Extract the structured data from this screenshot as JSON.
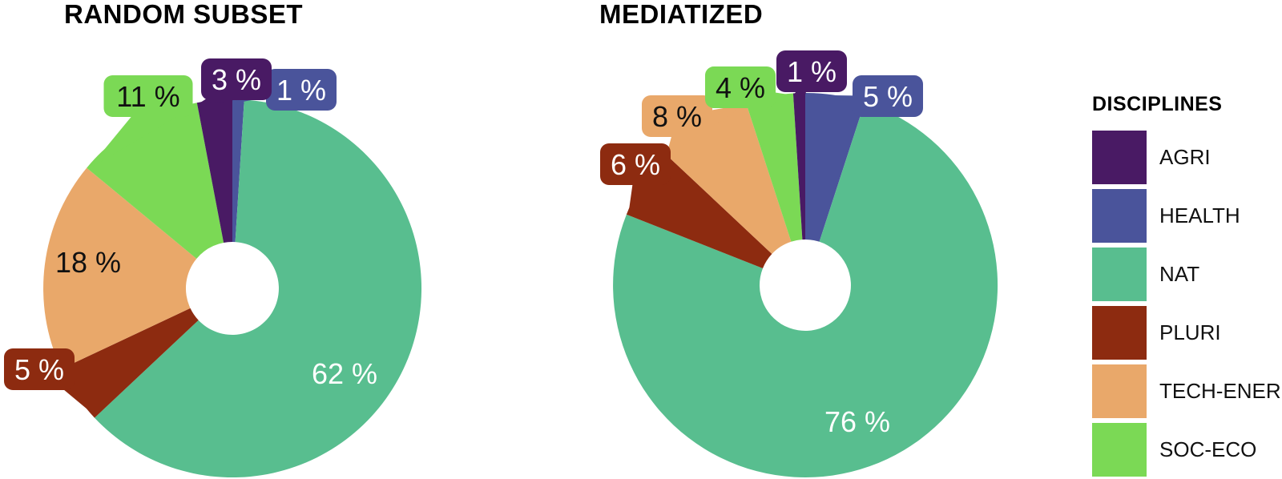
{
  "figure": {
    "background": "#ffffff"
  },
  "disciplines": [
    {
      "label": "AGRI",
      "color": "#491a64",
      "text_color": "#ffffff"
    },
    {
      "label": "HEALTH",
      "color": "#4a549b",
      "text_color": "#ffffff"
    },
    {
      "label": "NAT",
      "color": "#58be8f",
      "text_color": "#ffffff"
    },
    {
      "label": "PLURI",
      "color": "#8d2b10",
      "text_color": "#ffffff"
    },
    {
      "label": "TECH-ENER",
      "color": "#e9a86a",
      "text_color": "#111111"
    },
    {
      "label": "SOC-ECO",
      "color": "#7bd955",
      "text_color": "#111111"
    }
  ],
  "legend": {
    "title": "DISCIPLINES"
  },
  "chart_data": [
    {
      "type": "pie",
      "donut": true,
      "title": "RANDOM SUBSET",
      "unit": "%",
      "start_angle": "12-oclock",
      "direction": "clockwise",
      "slices": [
        {
          "discipline": "HEALTH",
          "value": 1,
          "display": "1 %",
          "label_style": "callout",
          "label_offset": [
            86,
            -248
          ]
        },
        {
          "discipline": "NAT",
          "value": 62,
          "display": "62 %",
          "label_style": "inside",
          "label_offset": [
            140,
            106
          ]
        },
        {
          "discipline": "PLURI",
          "value": 5,
          "display": "5 %",
          "label_style": "callout",
          "label_offset": [
            -241,
            101
          ]
        },
        {
          "discipline": "TECH-ENER",
          "value": 18,
          "display": "18 %",
          "label_style": "inside",
          "label_offset": [
            -180,
            -33
          ]
        },
        {
          "discipline": "SOC-ECO",
          "value": 11,
          "display": "11 %",
          "label_style": "callout",
          "label_offset": [
            -105,
            -240
          ]
        },
        {
          "discipline": "AGRI",
          "value": 3,
          "display": "3 %",
          "label_style": "callout",
          "label_offset": [
            5,
            -261
          ]
        }
      ]
    },
    {
      "type": "pie",
      "donut": true,
      "title": "MEDIATIZED",
      "unit": "%",
      "start_angle": "12-oclock",
      "direction": "clockwise",
      "slices": [
        {
          "discipline": "HEALTH",
          "value": 5,
          "display": "5 %",
          "label_style": "callout",
          "label_offset": [
            103,
            -236
          ]
        },
        {
          "discipline": "NAT",
          "value": 76,
          "display": "76 %",
          "label_style": "inside",
          "label_offset": [
            65,
            170
          ]
        },
        {
          "discipline": "PLURI",
          "value": 6,
          "display": "6 %",
          "label_style": "callout",
          "label_offset": [
            -212,
            -151
          ]
        },
        {
          "discipline": "TECH-ENER",
          "value": 8,
          "display": "8 %",
          "label_style": "callout",
          "label_offset": [
            -160,
            -211
          ]
        },
        {
          "discipline": "SOC-ECO",
          "value": 4,
          "display": "4 %",
          "label_style": "callout",
          "label_offset": [
            -81,
            -247
          ]
        },
        {
          "discipline": "AGRI",
          "value": 1,
          "display": "1 %",
          "label_style": "callout",
          "label_offset": [
            8,
            -267
          ]
        }
      ]
    }
  ]
}
